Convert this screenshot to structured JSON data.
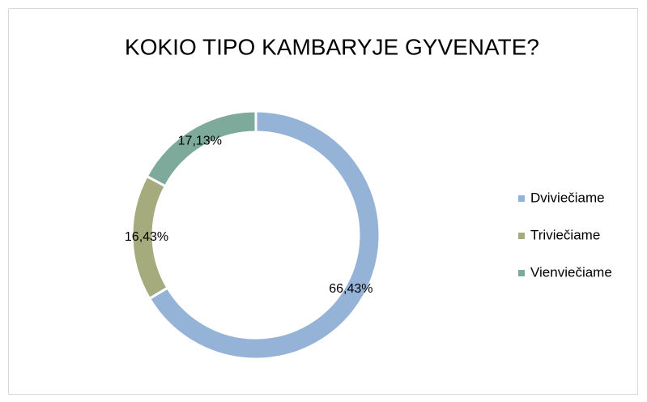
{
  "chart_data": {
    "type": "donut",
    "title": "KOKIO TIPO KAMBARYJE GYVENATE?",
    "categories": [
      "Dviviečiame",
      "Triviečiame",
      "Vienviečiame"
    ],
    "values": [
      66.43,
      16.43,
      17.13
    ],
    "value_labels": [
      "66,43%",
      "16,43%",
      "17,13%"
    ],
    "colors": [
      "#95b3d7",
      "#a5ab7c",
      "#7daa9a"
    ],
    "legend": "right"
  }
}
